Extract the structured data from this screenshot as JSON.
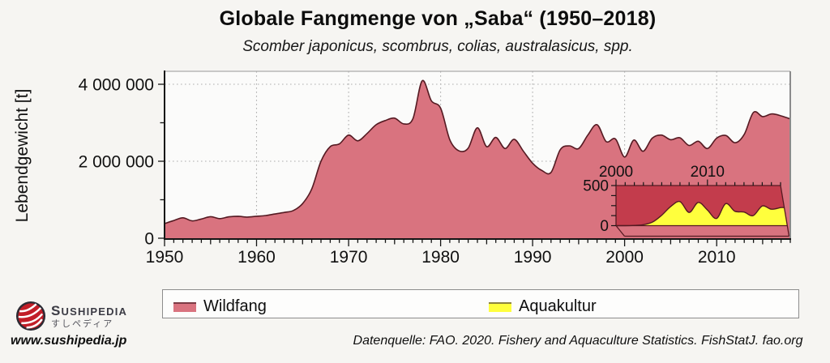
{
  "page": {
    "background": "#f6f5f2"
  },
  "title": "Globale Fangmenge von „Saba“ (1950–2018)",
  "subtitle": "Scomber japonicus, scombrus, colias, australasicus, spp.",
  "ylabel": "Lebendgewicht [t]",
  "legend": {
    "wildfang_label": "Wildfang",
    "aquakultur_label": "Aquakultur"
  },
  "footer": {
    "source": "Datenquelle: FAO. 2020. Fishery and Aquaculture Statistics. FishStatJ. fao.org"
  },
  "branding": {
    "name": "SUSHIPEDIA",
    "name_jp": "すしペディア",
    "url": "www.sushipedia.jp"
  },
  "colors": {
    "wildfang": "#d9737f",
    "aquakultur": "#ffff3d",
    "outline": "#551a22",
    "inset_bg": "#c33c4c",
    "plot_bg": "#fbfbfa",
    "axis": "#151515"
  },
  "chart_data": {
    "type": "area",
    "title": "Globale Fangmenge von „Saba“ (1950–2018)",
    "subtitle": "Scomber japonicus, scombrus, colias, australasicus, spp.",
    "xlabel": "",
    "ylabel": "Lebendgewicht [t]",
    "xlim": [
      1950,
      2018
    ],
    "ylim": [
      0,
      4400000
    ],
    "grid": "dotted",
    "x_ticks": [
      1950,
      1960,
      1970,
      1980,
      1990,
      2000,
      2010
    ],
    "y_ticks": [
      {
        "value": 0,
        "label": "0"
      },
      {
        "value": 2000000,
        "label": "2 000 000"
      },
      {
        "value": 4000000,
        "label": "4 000 000"
      }
    ],
    "x": [
      1950,
      1951,
      1952,
      1953,
      1954,
      1955,
      1956,
      1957,
      1958,
      1959,
      1960,
      1961,
      1962,
      1963,
      1964,
      1965,
      1966,
      1967,
      1968,
      1969,
      1970,
      1971,
      1972,
      1973,
      1974,
      1975,
      1976,
      1977,
      1978,
      1979,
      1980,
      1981,
      1982,
      1983,
      1984,
      1985,
      1986,
      1987,
      1988,
      1989,
      1990,
      1991,
      1992,
      1993,
      1994,
      1995,
      1996,
      1997,
      1998,
      1999,
      2000,
      2001,
      2002,
      2003,
      2004,
      2005,
      2006,
      2007,
      2008,
      2009,
      2010,
      2011,
      2012,
      2013,
      2014,
      2015,
      2016,
      2017,
      2018
    ],
    "series": [
      {
        "name": "Wildfang",
        "unit": "t",
        "values": [
          380000,
          460000,
          530000,
          450000,
          500000,
          560000,
          510000,
          555000,
          570000,
          550000,
          570000,
          590000,
          630000,
          670000,
          720000,
          900000,
          1280000,
          2000000,
          2380000,
          2450000,
          2680000,
          2530000,
          2720000,
          2950000,
          3060000,
          3120000,
          2970000,
          3110000,
          4090000,
          3570000,
          3380000,
          2560000,
          2270000,
          2340000,
          2870000,
          2380000,
          2620000,
          2330000,
          2570000,
          2260000,
          1950000,
          1760000,
          1710000,
          2300000,
          2400000,
          2330000,
          2680000,
          2950000,
          2510000,
          2580000,
          2110000,
          2550000,
          2260000,
          2600000,
          2680000,
          2560000,
          2610000,
          2410000,
          2520000,
          2330000,
          2600000,
          2670000,
          2480000,
          2700000,
          3270000,
          3160000,
          3230000,
          3180000,
          3100000
        ]
      }
    ],
    "inset": {
      "type": "area",
      "xlim": [
        2000,
        2018
      ],
      "ylim": [
        0,
        500
      ],
      "x_ticks": [
        2000,
        2010
      ],
      "y_ticks": [
        {
          "value": 0,
          "label": "0"
        },
        {
          "value": 500,
          "label": "500"
        }
      ],
      "x": [
        2000,
        2001,
        2002,
        2003,
        2004,
        2005,
        2006,
        2007,
        2008,
        2009,
        2010,
        2011,
        2012,
        2013,
        2014,
        2015,
        2016,
        2017,
        2018
      ],
      "series": [
        {
          "name": "Aquakultur",
          "values": [
            0,
            0,
            3,
            12,
            45,
            130,
            240,
            300,
            165,
            290,
            195,
            90,
            275,
            180,
            170,
            125,
            245,
            205,
            225
          ]
        }
      ]
    }
  }
}
